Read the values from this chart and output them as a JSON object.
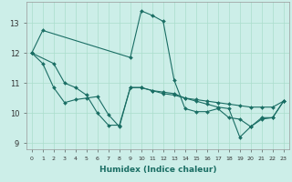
{
  "xlabel": "Humidex (Indice chaleur)",
  "bg_color": "#cceee8",
  "grid_color": "#aaddcc",
  "line_color": "#1a6e64",
  "xlim": [
    -0.5,
    23.5
  ],
  "ylim": [
    8.8,
    13.7
  ],
  "yticks": [
    9,
    10,
    11,
    12,
    13
  ],
  "xticks": [
    0,
    1,
    2,
    3,
    4,
    5,
    6,
    7,
    8,
    9,
    10,
    11,
    12,
    13,
    14,
    15,
    16,
    17,
    18,
    19,
    20,
    21,
    22,
    23
  ],
  "series1_x": [
    0,
    1,
    9,
    10,
    11,
    12,
    13,
    14,
    15,
    16,
    17,
    18,
    19,
    20,
    21,
    22,
    23
  ],
  "series1_y": [
    12.0,
    12.75,
    11.85,
    13.4,
    13.25,
    13.05,
    11.1,
    10.15,
    10.05,
    10.05,
    10.15,
    9.85,
    9.8,
    9.55,
    9.85,
    9.85,
    10.4
  ],
  "series2_x": [
    0,
    1,
    2,
    3,
    4,
    5,
    6,
    7,
    8,
    9,
    10,
    11,
    12,
    13,
    14,
    15,
    16,
    17,
    18,
    19,
    20,
    21,
    22,
    23
  ],
  "series2_y": [
    12.0,
    11.65,
    10.85,
    10.35,
    10.45,
    10.5,
    10.55,
    9.95,
    9.55,
    10.85,
    10.85,
    10.75,
    10.7,
    10.65,
    10.5,
    10.45,
    10.4,
    10.35,
    10.3,
    10.25,
    10.2,
    10.2,
    10.2,
    10.4
  ],
  "series3_x": [
    0,
    2,
    3,
    4,
    5,
    6,
    7,
    8,
    9,
    10,
    11,
    12,
    13,
    14,
    15,
    16,
    17,
    18,
    19,
    20,
    21,
    22,
    23
  ],
  "series3_y": [
    12.0,
    11.65,
    11.0,
    10.85,
    10.6,
    10.0,
    9.6,
    9.6,
    10.85,
    10.85,
    10.75,
    10.65,
    10.6,
    10.5,
    10.4,
    10.3,
    10.2,
    10.15,
    9.2,
    9.55,
    9.8,
    9.85,
    10.4
  ]
}
